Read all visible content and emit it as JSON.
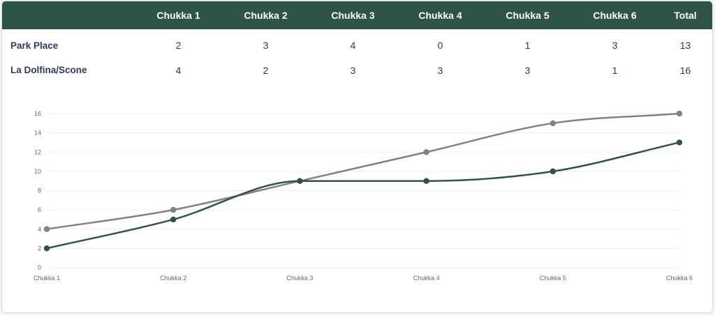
{
  "table": {
    "columns": [
      "",
      "Chukka 1",
      "Chukka 2",
      "Chukka 3",
      "Chukka 4",
      "Chukka 5",
      "Chukka 6",
      "Total"
    ],
    "rows": [
      {
        "team": "Park Place",
        "scores": [
          "2",
          "3",
          "4",
          "0",
          "1",
          "3"
        ],
        "total": "13"
      },
      {
        "team": "La Dolfina/Scone",
        "scores": [
          "4",
          "2",
          "3",
          "3",
          "3",
          "1"
        ],
        "total": "16"
      }
    ]
  },
  "colors": {
    "header_bg": "#2e5446",
    "series_park_place": "#2e5446",
    "series_la_dolfina": "#7d8190"
  },
  "chart_data": {
    "type": "line",
    "categories": [
      "Chukka 1",
      "Chukka 2",
      "Chukka 3",
      "Chukka 4",
      "Chukka 5",
      "Chukka 6"
    ],
    "series": [
      {
        "values": [
          2,
          5,
          9,
          9,
          10,
          13
        ],
        "color": "#2e5446"
      },
      {
        "values": [
          4,
          6,
          9,
          12,
          15,
          16
        ],
        "color": "#7d8190"
      }
    ],
    "ylim": [
      0,
      16
    ],
    "yticks": [
      0,
      2,
      4,
      6,
      8,
      10,
      12,
      14,
      16
    ],
    "grid": true,
    "smooth": true,
    "legend": "none"
  }
}
